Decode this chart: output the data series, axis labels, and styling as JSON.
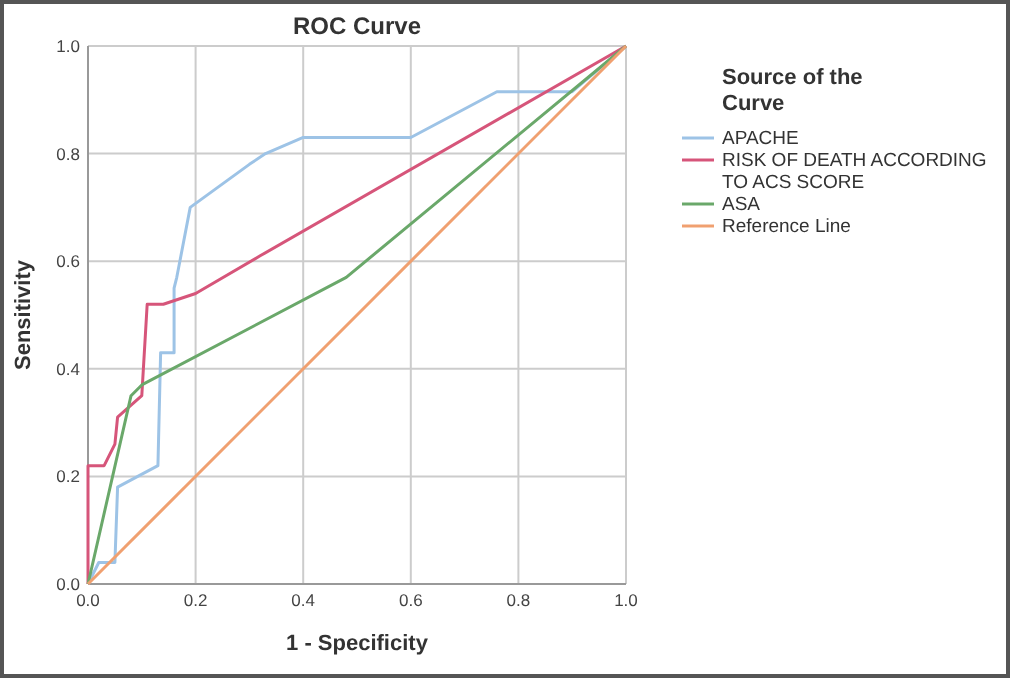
{
  "chart_data": {
    "type": "line",
    "title": "ROC Curve",
    "xlabel": "1 - Specificity",
    "ylabel": "Sensitivity",
    "legend_title": "Source of the Curve",
    "legend": "right",
    "grid": true,
    "marker": "none",
    "line_style": "solid",
    "xlim": [
      0,
      1
    ],
    "ylim": [
      0,
      1
    ],
    "xticks": [
      {
        "value": 0,
        "label": "0.0"
      },
      {
        "value": 0.2,
        "label": "0.2"
      },
      {
        "value": 0.4,
        "label": "0.4"
      },
      {
        "value": 0.6,
        "label": "0.6"
      },
      {
        "value": 0.8,
        "label": "0.8"
      },
      {
        "value": 1,
        "label": "1.0"
      }
    ],
    "yticks": [
      {
        "value": 0,
        "label": "0.0"
      },
      {
        "value": 0.2,
        "label": "0.2"
      },
      {
        "value": 0.4,
        "label": "0.4"
      },
      {
        "value": 0.6,
        "label": "0.6"
      },
      {
        "value": 0.8,
        "label": "0.8"
      },
      {
        "value": 1,
        "label": "1.0"
      }
    ],
    "series": [
      {
        "name": "APACHE",
        "color": "#9dc3e6",
        "x": [
          0,
          0.02,
          0.05,
          0.055,
          0.13,
          0.135,
          0.16,
          0.16,
          0.165,
          0.19,
          0.3,
          0.33,
          0.4,
          0.6,
          0.76,
          0.9,
          1
        ],
        "values": [
          0,
          0.04,
          0.04,
          0.18,
          0.22,
          0.43,
          0.43,
          0.55,
          0.57,
          0.7,
          0.78,
          0.8,
          0.83,
          0.83,
          0.915,
          0.915,
          1
        ]
      },
      {
        "name": "RISK OF DEATH ACCORDING TO ACS SCORE",
        "color": "#d6557a",
        "x": [
          0,
          0,
          0.03,
          0.05,
          0.055,
          0.1,
          0.11,
          0.14,
          0.2,
          0.32,
          1
        ],
        "values": [
          0,
          0.22,
          0.22,
          0.26,
          0.31,
          0.35,
          0.52,
          0.52,
          0.54,
          0.61,
          1
        ]
      },
      {
        "name": "ASA",
        "color": "#6aa86a",
        "x": [
          0,
          0.08,
          0.1,
          0.48,
          1
        ],
        "values": [
          0,
          0.35,
          0.37,
          0.57,
          1
        ]
      },
      {
        "name": "Reference Line",
        "color": "#f0a070",
        "x": [
          0,
          1
        ],
        "values": [
          0,
          1
        ]
      }
    ]
  }
}
